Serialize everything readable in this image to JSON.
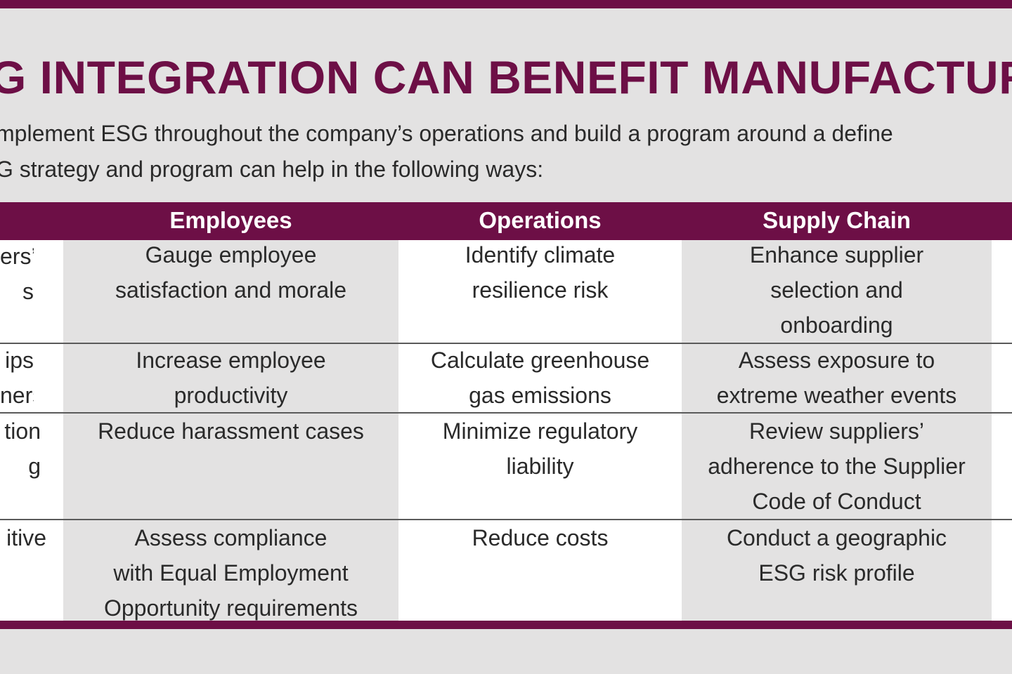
{
  "title": "G INTEGRATION CAN BENEFIT MANUFACTUR",
  "intro": {
    "line1": "mplement ESG throughout the company’s operations and build a program around a define",
    "line2": "G strategy and program can help in the following ways:"
  },
  "table": {
    "headers": {
      "employees": "Employees",
      "operations": "Operations",
      "supply_chain": "Supply Chain"
    },
    "rows": [
      {
        "partial": "ers’\ns",
        "employees": "Gauge employee\nsatisfaction and morale",
        "operations": "Identify climate\nresilience risk",
        "supply_chain": "Enhance supplier\nselection and\nonboarding"
      },
      {
        "partial": "ips\nners",
        "employees": "Increase employee\nproductivity",
        "operations": "Calculate greenhouse\ngas emissions",
        "supply_chain": "Assess exposure to\nextreme weather events"
      },
      {
        "partial": "tion\ng",
        "employees": "Reduce harassment cases",
        "operations": "Minimize regulatory\nliability",
        "supply_chain": "Review suppliers’\nadherence to the Supplier\nCode of Conduct"
      },
      {
        "partial": "itive",
        "employees": "Assess compliance\nwith Equal Employment\nOpportunity requirements",
        "operations": "Reduce costs",
        "supply_chain": "Conduct a geographic\nESG risk profile"
      }
    ]
  }
}
